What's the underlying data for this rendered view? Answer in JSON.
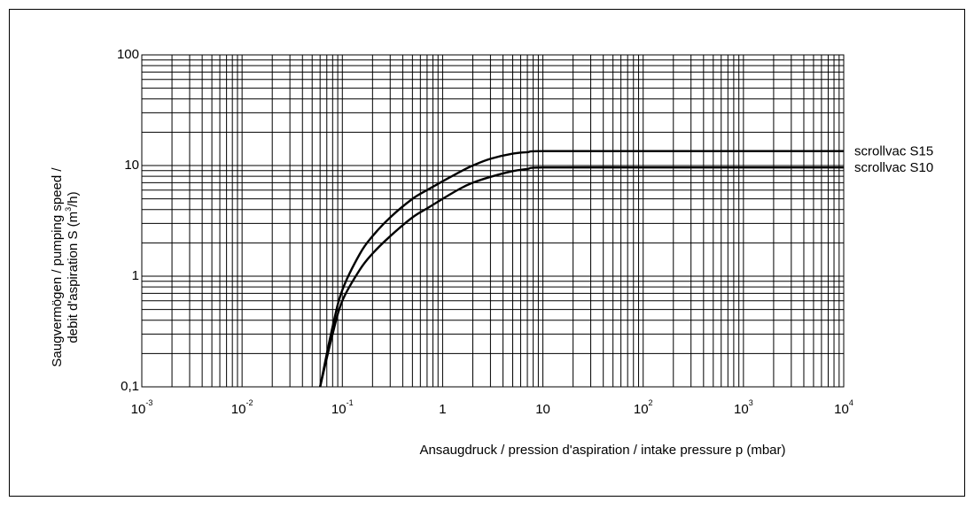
{
  "chart_data": {
    "type": "line",
    "title": "",
    "xlabel": "Ansaugdruck / pression d'aspiration / intake pressure p (mbar)",
    "ylabel_line1": "Saugvermögen / pumping speed /",
    "ylabel_line2_prefix": "debit d'aspiration S (m",
    "ylabel_line2_sup": "3",
    "ylabel_line2_suffix": "/h)",
    "x_scale": "log",
    "y_scale": "log",
    "xlim": [
      0.001,
      10000
    ],
    "ylim": [
      0.1,
      100
    ],
    "grid": true,
    "x_ticks": [
      {
        "value": 0.001,
        "base": "10",
        "exp": "-3"
      },
      {
        "value": 0.01,
        "base": "10",
        "exp": "-2"
      },
      {
        "value": 0.1,
        "base": "10",
        "exp": "-1"
      },
      {
        "value": 1,
        "base": "1",
        "exp": ""
      },
      {
        "value": 10,
        "base": "10",
        "exp": ""
      },
      {
        "value": 100,
        "base": "10",
        "exp": "2"
      },
      {
        "value": 1000,
        "base": "10",
        "exp": "3"
      },
      {
        "value": 10000,
        "base": "10",
        "exp": "4"
      }
    ],
    "y_ticks": [
      {
        "value": 0.1,
        "label": "0,1"
      },
      {
        "value": 1,
        "label": "1"
      },
      {
        "value": 10,
        "label": "10"
      },
      {
        "value": 100,
        "label": "100"
      }
    ],
    "series": [
      {
        "name": "scrollvac S15",
        "x": [
          0.06,
          0.08,
          0.1,
          0.15,
          0.2,
          0.3,
          0.5,
          0.7,
          1,
          1.5,
          2,
          3,
          5,
          7,
          10,
          100,
          1000,
          10000
        ],
        "y": [
          0.1,
          0.35,
          0.75,
          1.6,
          2.3,
          3.4,
          5.0,
          6.0,
          7.2,
          8.8,
          10.0,
          11.5,
          12.8,
          13.2,
          13.5,
          13.5,
          13.5,
          13.5
        ]
      },
      {
        "name": "scrollvac S10",
        "x": [
          0.06,
          0.08,
          0.1,
          0.15,
          0.2,
          0.3,
          0.5,
          0.7,
          1,
          1.5,
          2,
          3,
          5,
          7,
          10,
          100,
          1000,
          10000
        ],
        "y": [
          0.1,
          0.3,
          0.6,
          1.15,
          1.6,
          2.3,
          3.4,
          4.1,
          5.0,
          6.2,
          7.0,
          7.9,
          8.9,
          9.3,
          9.6,
          9.6,
          9.6,
          9.6
        ]
      }
    ]
  }
}
